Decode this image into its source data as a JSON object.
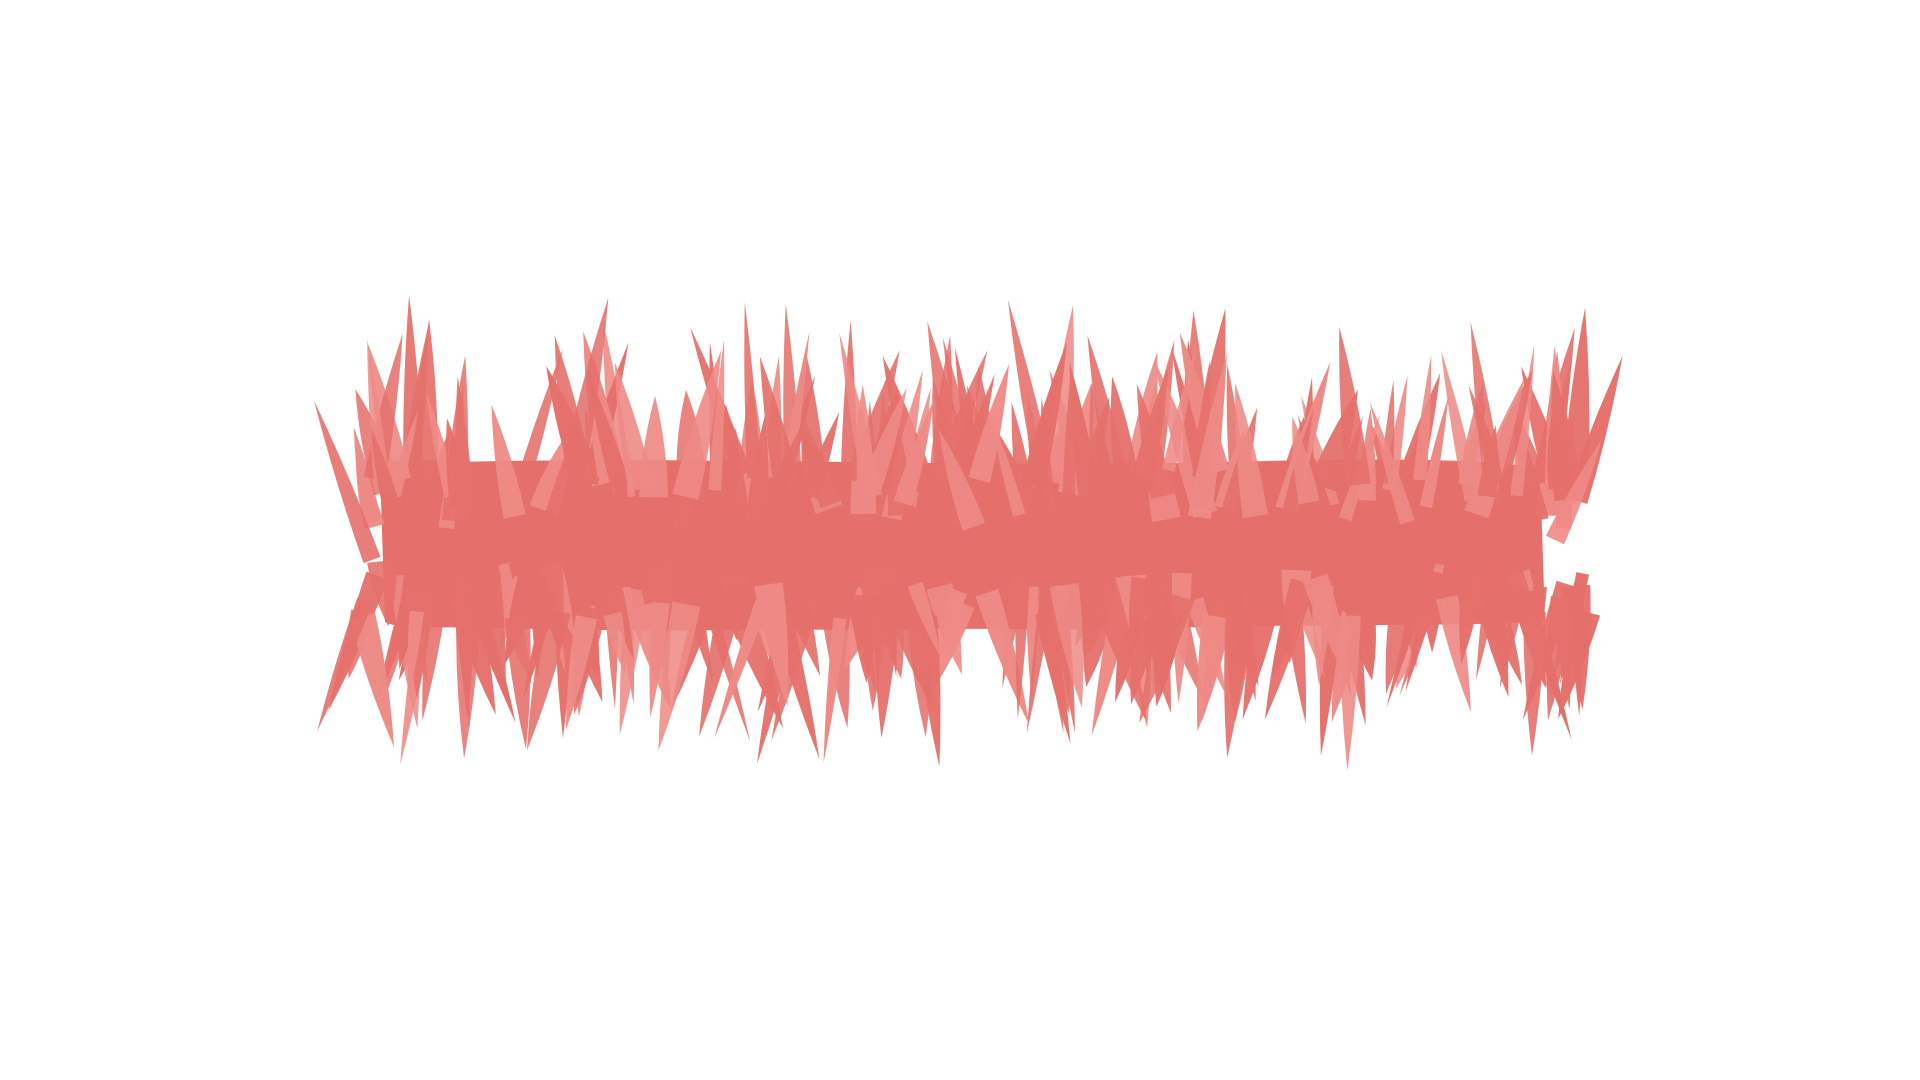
{
  "canvas": {
    "background_color": "#ffffff"
  },
  "artwork": {
    "description_icon": "spiky-brush-stroke-icon",
    "fill_color": "#e5706b",
    "highlight_color": "#ee8a86"
  }
}
